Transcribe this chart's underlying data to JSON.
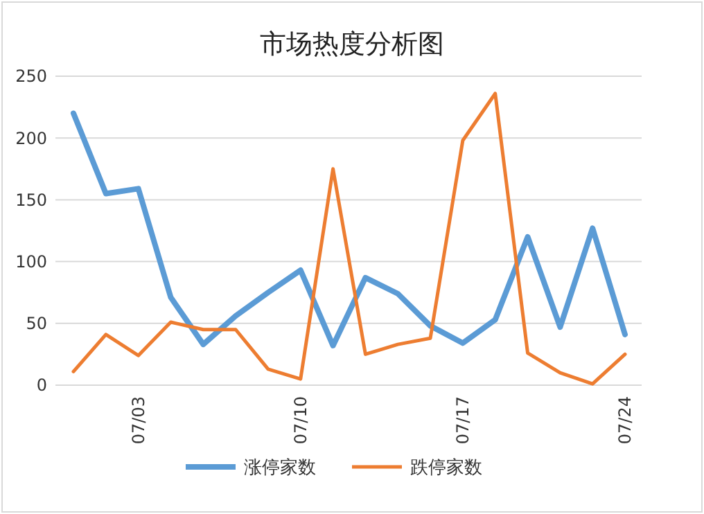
{
  "chart_data": {
    "type": "line",
    "title": "市场热度分析图",
    "categories": [
      null,
      null,
      "07/03",
      null,
      null,
      null,
      null,
      "07/10",
      null,
      null,
      null,
      null,
      "07/17",
      null,
      null,
      null,
      null,
      "07/24"
    ],
    "series": [
      {
        "name": "涨停家数",
        "color": "#5b9bd5",
        "values": [
          220,
          155,
          159,
          71,
          33,
          56,
          75,
          93,
          32,
          87,
          74,
          48,
          34,
          53,
          120,
          47,
          127,
          41
        ]
      },
      {
        "name": "跌停家数",
        "color": "#ed7d31",
        "values": [
          11,
          41,
          24,
          51,
          45,
          45,
          13,
          5,
          175,
          25,
          33,
          38,
          198,
          236,
          26,
          10,
          1,
          25
        ]
      }
    ],
    "ylim": [
      0,
      250
    ],
    "yticks": [
      0,
      50,
      100,
      150,
      200,
      250
    ],
    "grid": "y",
    "legend": "bottom",
    "marker": "none",
    "line_style": "solid"
  }
}
